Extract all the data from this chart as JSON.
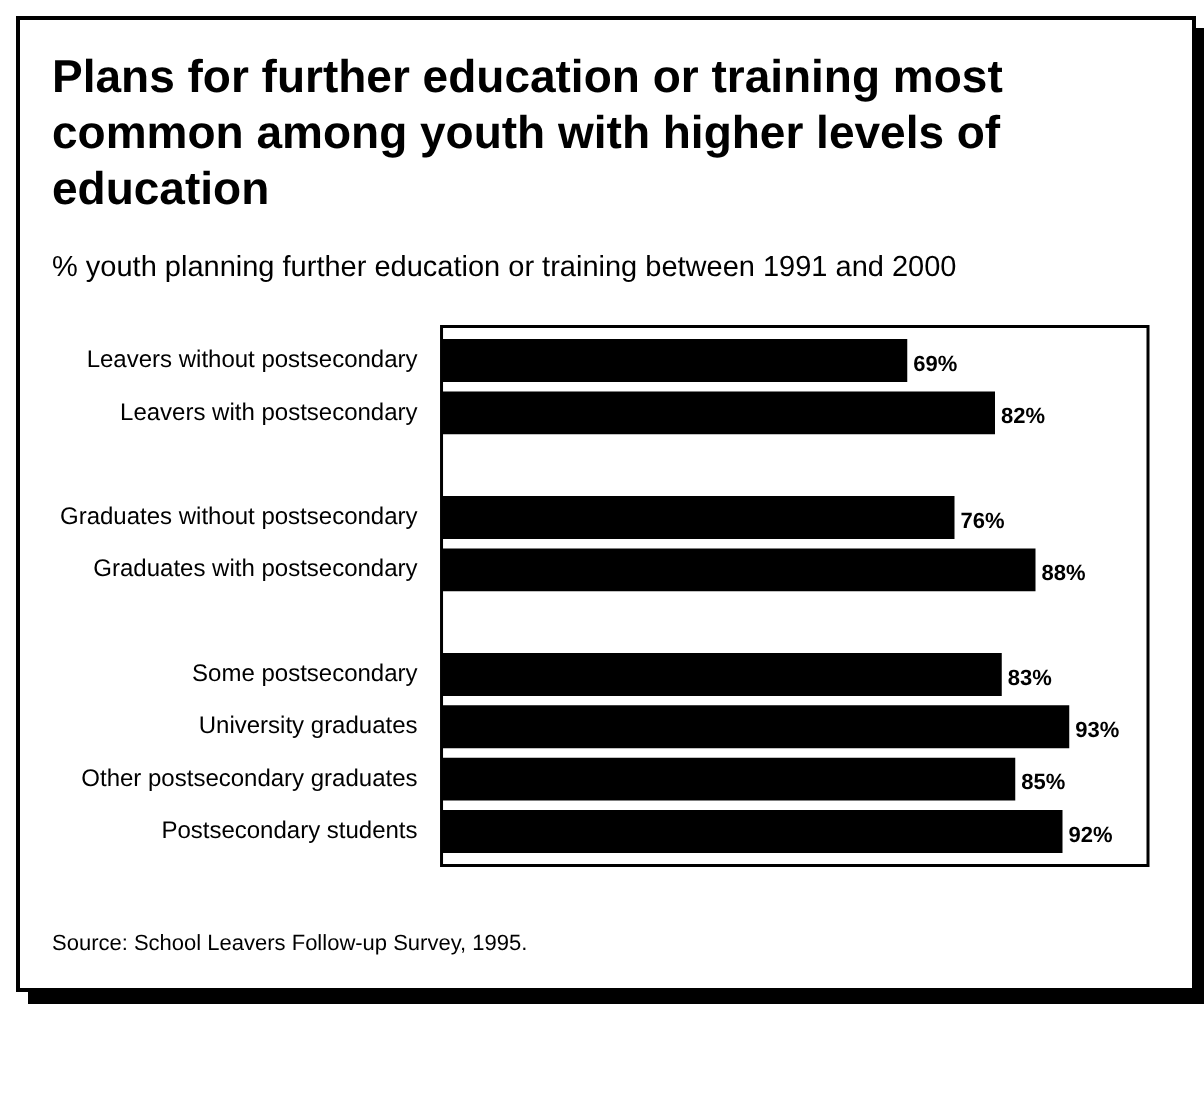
{
  "chart_data": {
    "type": "bar",
    "orientation": "horizontal",
    "title": "Plans for further education or training most common among youth with higher levels of education",
    "subtitle": "% youth planning further education or training between 1991 and 2000",
    "categories": [
      "Leavers without postsecondary",
      "Leavers with postsecondary",
      null,
      "Graduates without postsecondary",
      "Graduates with postsecondary",
      null,
      "Some postsecondary",
      "University graduates",
      "Other postsecondary graduates",
      "Postsecondary students"
    ],
    "values": [
      69,
      82,
      null,
      76,
      88,
      null,
      83,
      93,
      85,
      92
    ],
    "value_labels": [
      "69%",
      "82%",
      null,
      "76%",
      "88%",
      null,
      "83%",
      "93%",
      "85%",
      "92%"
    ],
    "color": "#000000",
    "xlim": [
      0,
      94
    ],
    "tick_labels": "y",
    "grid": false,
    "legend": false,
    "annotations": [
      "Source: School Leavers Follow-up Survey, 1995."
    ]
  }
}
